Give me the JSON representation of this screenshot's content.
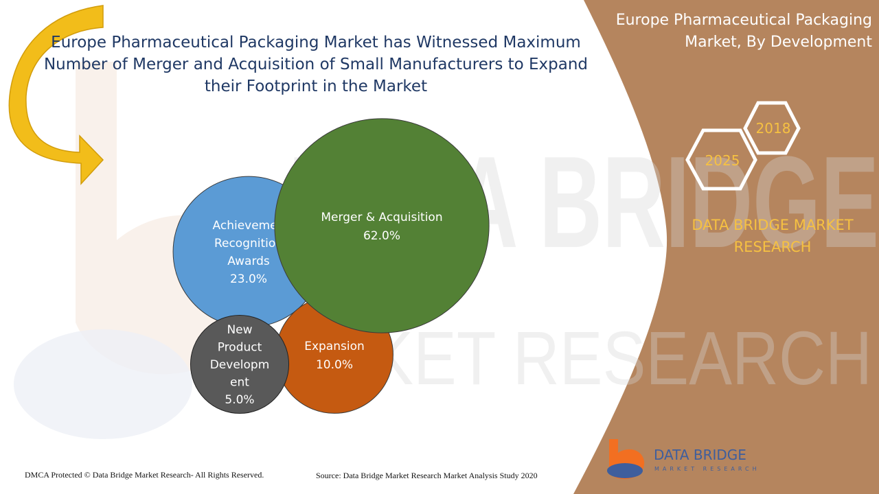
{
  "title": "Europe Pharmaceutical Packaging  Market has Witnessed Maximum Number of Merger and Acquisition of Small Manufacturers to Expand their Footprint in the Market",
  "side_title": "Europe Pharmaceutical Packaging Market, By Development",
  "years": {
    "start": "2018",
    "end": "2025"
  },
  "brand": {
    "line": "DATA BRIDGE MARKET RESEARCH",
    "logo_main": "DATA BRIDGE",
    "logo_sub": "MARKET RESEARCH"
  },
  "watermark": {
    "line1": "DATA BRIDGE",
    "line2": "MARKET RESEARCH"
  },
  "footer": {
    "left": "DMCA Protected © Data Bridge Market Research- All Rights Reserved.",
    "source": "Source: Data Bridge Market Research Market Analysis Study 2020"
  },
  "colors": {
    "panel": "#b5855e",
    "title": "#1f3864",
    "brand_text": "#f6c142",
    "arrow": "#f2bd1a",
    "logo_orange": "#f26f21",
    "logo_blue": "#3e5e9d"
  },
  "chart_data": {
    "type": "bubble",
    "title": "",
    "series": [
      {
        "name": "Achievements, Recognition & Awards",
        "label": [
          "Achievemen",
          "Recognition",
          "Awards"
        ],
        "value": 23.0,
        "value_label": "23.0%",
        "color": "#5b9bd5"
      },
      {
        "name": "Merger & Acquisition",
        "label": [
          "Merger & Acquisition"
        ],
        "value": 62.0,
        "value_label": "62.0%",
        "color": "#538135"
      },
      {
        "name": "Expansion",
        "label": [
          "Expansion"
        ],
        "value": 10.0,
        "value_label": "10.0%",
        "color": "#c55a11"
      },
      {
        "name": "New Product Development",
        "label": [
          "New",
          "Product",
          "Developm",
          "ent"
        ],
        "value": 5.0,
        "value_label": "5.0%",
        "color": "#595959"
      }
    ]
  }
}
